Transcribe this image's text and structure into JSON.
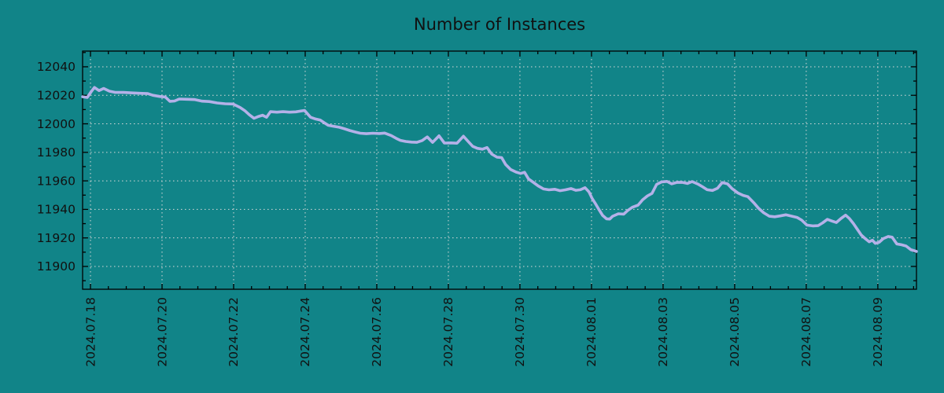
{
  "title": "Number of Instances",
  "colors": {
    "background": "#118488",
    "line": "#b4b1e8",
    "grid": "#d9d9d9",
    "axis": "#000000",
    "text": "#111111"
  },
  "chart_data": {
    "type": "line",
    "title": "Number of Instances",
    "grid": true,
    "legend_position": "none",
    "x_axis": {
      "label": "",
      "tick_labels": [
        "2024.07.18",
        "2024.07.20",
        "2024.07.22",
        "2024.07.24",
        "2024.07.26",
        "2024.07.28",
        "2024.07.30",
        "2024.08.01",
        "2024.08.03",
        "2024.08.05",
        "2024.08.07",
        "2024.08.09"
      ],
      "tick_day_offsets": [
        0,
        2,
        4,
        6,
        8,
        10,
        12,
        14,
        16,
        18,
        20,
        22
      ],
      "minor_tick_interval_days": 0.5,
      "range_days": [
        -0.22,
        23.08
      ]
    },
    "y_axis": {
      "label": "",
      "ticks": [
        11900,
        11920,
        11940,
        11960,
        11980,
        12000,
        12020,
        12040
      ],
      "minor_tick_interval": 10,
      "range": [
        11884,
        12051
      ]
    },
    "series": [
      {
        "name": "instances",
        "color": "#b4b1e8",
        "points": [
          [
            -0.22,
            12019
          ],
          [
            -0.09,
            12018.5
          ],
          [
            0.02,
            12022.5
          ],
          [
            0.11,
            12025.5
          ],
          [
            0.24,
            12023.3
          ],
          [
            0.37,
            12024.8
          ],
          [
            0.53,
            12022.9
          ],
          [
            0.7,
            12022
          ],
          [
            0.92,
            12022
          ],
          [
            1.16,
            12021.7
          ],
          [
            1.38,
            12021.4
          ],
          [
            1.6,
            12021.2
          ],
          [
            1.74,
            12020
          ],
          [
            1.93,
            12019.2
          ],
          [
            2.09,
            12018.8
          ],
          [
            2.22,
            12015.8
          ],
          [
            2.35,
            12016
          ],
          [
            2.48,
            12017.4
          ],
          [
            2.7,
            12017.2
          ],
          [
            2.92,
            12017
          ],
          [
            3.12,
            12015.9
          ],
          [
            3.32,
            12015.6
          ],
          [
            3.54,
            12014.6
          ],
          [
            3.76,
            12014.1
          ],
          [
            3.98,
            12013.9
          ],
          [
            4.18,
            12011.5
          ],
          [
            4.31,
            12009.3
          ],
          [
            4.44,
            12006.3
          ],
          [
            4.57,
            12003.9
          ],
          [
            4.7,
            12005.2
          ],
          [
            4.81,
            12006
          ],
          [
            4.92,
            12004.6
          ],
          [
            5.03,
            12008.5
          ],
          [
            5.21,
            12008.2
          ],
          [
            5.38,
            12008.5
          ],
          [
            5.56,
            12008.2
          ],
          [
            5.74,
            12008.4
          ],
          [
            5.98,
            12009.4
          ],
          [
            6.15,
            12004.6
          ],
          [
            6.29,
            12003.4
          ],
          [
            6.42,
            12002.6
          ],
          [
            6.53,
            12000.8
          ],
          [
            6.64,
            11999
          ],
          [
            6.79,
            11998.3
          ],
          [
            6.95,
            11997.6
          ],
          [
            7.1,
            11996.5
          ],
          [
            7.25,
            11995.3
          ],
          [
            7.38,
            11994.4
          ],
          [
            7.54,
            11993.4
          ],
          [
            7.71,
            11993.1
          ],
          [
            7.89,
            11993.4
          ],
          [
            8.07,
            11993.2
          ],
          [
            8.22,
            11993.5
          ],
          [
            8.4,
            11991.8
          ],
          [
            8.55,
            11989.7
          ],
          [
            8.66,
            11988.4
          ],
          [
            8.81,
            11987.6
          ],
          [
            8.97,
            11987.2
          ],
          [
            9.12,
            11987
          ],
          [
            9.27,
            11988.3
          ],
          [
            9.41,
            11990.8
          ],
          [
            9.56,
            11987
          ],
          [
            9.74,
            11991.6
          ],
          [
            9.89,
            11986.5
          ],
          [
            10.07,
            11986.6
          ],
          [
            10.24,
            11986.4
          ],
          [
            10.42,
            11991.3
          ],
          [
            10.57,
            11987.2
          ],
          [
            10.68,
            11984.2
          ],
          [
            10.81,
            11982.8
          ],
          [
            10.95,
            11982.2
          ],
          [
            11.08,
            11983.4
          ],
          [
            11.21,
            11978.8
          ],
          [
            11.36,
            11976.6
          ],
          [
            11.49,
            11976.3
          ],
          [
            11.6,
            11971.5
          ],
          [
            11.74,
            11968
          ],
          [
            11.89,
            11966.2
          ],
          [
            12.02,
            11965.2
          ],
          [
            12.13,
            11966
          ],
          [
            12.24,
            11961.4
          ],
          [
            12.37,
            11959
          ],
          [
            12.51,
            11956.5
          ],
          [
            12.66,
            11954.3
          ],
          [
            12.81,
            11953.7
          ],
          [
            12.97,
            11954.1
          ],
          [
            13.12,
            11953.1
          ],
          [
            13.27,
            11953.7
          ],
          [
            13.43,
            11954.6
          ],
          [
            13.56,
            11953.4
          ],
          [
            13.69,
            11953.8
          ],
          [
            13.82,
            11955.2
          ],
          [
            13.93,
            11952.3
          ],
          [
            14.02,
            11947.6
          ],
          [
            14.11,
            11944
          ],
          [
            14.2,
            11940.2
          ],
          [
            14.31,
            11935.8
          ],
          [
            14.42,
            11933.4
          ],
          [
            14.51,
            11933.2
          ],
          [
            14.59,
            11935.2
          ],
          [
            14.75,
            11936.9
          ],
          [
            14.9,
            11936.7
          ],
          [
            15.01,
            11939.2
          ],
          [
            15.14,
            11941.5
          ],
          [
            15.3,
            11943
          ],
          [
            15.43,
            11946.8
          ],
          [
            15.56,
            11949.4
          ],
          [
            15.69,
            11951.2
          ],
          [
            15.82,
            11957.5
          ],
          [
            15.96,
            11959.3
          ],
          [
            16.11,
            11959.6
          ],
          [
            16.24,
            11957.9
          ],
          [
            16.4,
            11959
          ],
          [
            16.55,
            11958.9
          ],
          [
            16.68,
            11958.2
          ],
          [
            16.81,
            11959.5
          ],
          [
            16.97,
            11957.8
          ],
          [
            17.1,
            11955.9
          ],
          [
            17.23,
            11953.8
          ],
          [
            17.38,
            11953.3
          ],
          [
            17.52,
            11954.8
          ],
          [
            17.65,
            11958.8
          ],
          [
            17.8,
            11957.9
          ],
          [
            17.93,
            11954.5
          ],
          [
            18.09,
            11951.5
          ],
          [
            18.24,
            11949.8
          ],
          [
            18.37,
            11948.9
          ],
          [
            18.53,
            11944.8
          ],
          [
            18.66,
            11941
          ],
          [
            18.81,
            11937.7
          ],
          [
            18.97,
            11935.2
          ],
          [
            19.12,
            11934.8
          ],
          [
            19.27,
            11935.4
          ],
          [
            19.43,
            11936.2
          ],
          [
            19.58,
            11935.3
          ],
          [
            19.74,
            11934.4
          ],
          [
            19.87,
            11932.5
          ],
          [
            20.02,
            11929
          ],
          [
            20.18,
            11928.4
          ],
          [
            20.33,
            11928.6
          ],
          [
            20.46,
            11930.6
          ],
          [
            20.59,
            11933
          ],
          [
            20.7,
            11932
          ],
          [
            20.84,
            11930.8
          ],
          [
            20.97,
            11933.6
          ],
          [
            21.1,
            11936
          ],
          [
            21.21,
            11933.5
          ],
          [
            21.32,
            11930
          ],
          [
            21.43,
            11926
          ],
          [
            21.54,
            11922
          ],
          [
            21.65,
            11919.5
          ],
          [
            21.76,
            11917.3
          ],
          [
            21.85,
            11918.4
          ],
          [
            21.93,
            11916.2
          ],
          [
            22.04,
            11917
          ],
          [
            22.15,
            11919.5
          ],
          [
            22.29,
            11921
          ],
          [
            22.4,
            11920.5
          ],
          [
            22.53,
            11915.8
          ],
          [
            22.66,
            11915.2
          ],
          [
            22.79,
            11914.3
          ],
          [
            22.92,
            11911.8
          ],
          [
            23.08,
            11910.5
          ]
        ]
      }
    ]
  }
}
